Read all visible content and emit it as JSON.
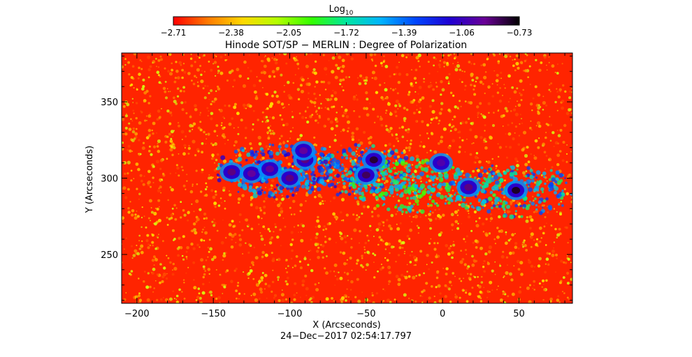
{
  "chart_data": {
    "type": "heatmap",
    "title": "Hinode SOT/SP − MERLIN : Degree of Polarization",
    "xlabel": "X (Arcseconds)",
    "ylabel": "Y (Arcseconds)",
    "timestamp": "24−Dec−2017 02:54:17.797",
    "colorbar": {
      "label_base": "Log",
      "label_subscript": "10",
      "min": -2.71,
      "max": -0.73,
      "ticks": [
        "−2.71",
        "−2.38",
        "−2.05",
        "−1.72",
        "−1.39",
        "−1.06",
        "−0.73"
      ],
      "colormap": [
        "#ff0000",
        "#ff7a00",
        "#ffd800",
        "#b4ff00",
        "#33ff00",
        "#00e6a0",
        "#00b4ff",
        "#0046ff",
        "#2000d2",
        "#6a0096",
        "#000000"
      ]
    },
    "xlim": [
      -210,
      85
    ],
    "ylim": [
      218,
      382
    ],
    "xticks": [
      {
        "value": -200,
        "label": "−200"
      },
      {
        "value": -150,
        "label": "−150"
      },
      {
        "value": -100,
        "label": "−100"
      },
      {
        "value": -50,
        "label": "−50"
      },
      {
        "value": 0,
        "label": "0"
      },
      {
        "value": 50,
        "label": "50"
      }
    ],
    "yticks": [
      {
        "value": 250,
        "label": "250"
      },
      {
        "value": 300,
        "label": "300"
      },
      {
        "value": 350,
        "label": "350"
      }
    ],
    "features": [
      {
        "kind": "spot",
        "x": -138,
        "y": 304,
        "level": -0.9
      },
      {
        "kind": "spot",
        "x": -125,
        "y": 303,
        "level": -0.95
      },
      {
        "kind": "spot",
        "x": -113,
        "y": 306,
        "level": -0.95
      },
      {
        "kind": "spot",
        "x": -100,
        "y": 300,
        "level": -0.9
      },
      {
        "kind": "spot",
        "x": -90,
        "y": 312,
        "level": -0.9
      },
      {
        "kind": "spot",
        "x": -91,
        "y": 318,
        "level": -0.95
      },
      {
        "kind": "spot",
        "x": -45,
        "y": 312,
        "level": -0.8
      },
      {
        "kind": "spot",
        "x": -50,
        "y": 302,
        "level": -0.85
      },
      {
        "kind": "spot",
        "x": -1,
        "y": 310,
        "level": -1.0
      },
      {
        "kind": "spot",
        "x": 17,
        "y": 294,
        "level": -0.9
      },
      {
        "kind": "spot",
        "x": 48,
        "y": 292,
        "level": -0.78
      },
      {
        "kind": "plage",
        "x": -110,
        "y": 305,
        "level": -1.4
      },
      {
        "kind": "plage",
        "x": -55,
        "y": 305,
        "level": -1.5
      },
      {
        "kind": "plage",
        "x": -20,
        "y": 295,
        "level": -1.75
      },
      {
        "kind": "plage",
        "x": 45,
        "y": 292,
        "level": -1.6
      }
    ]
  }
}
